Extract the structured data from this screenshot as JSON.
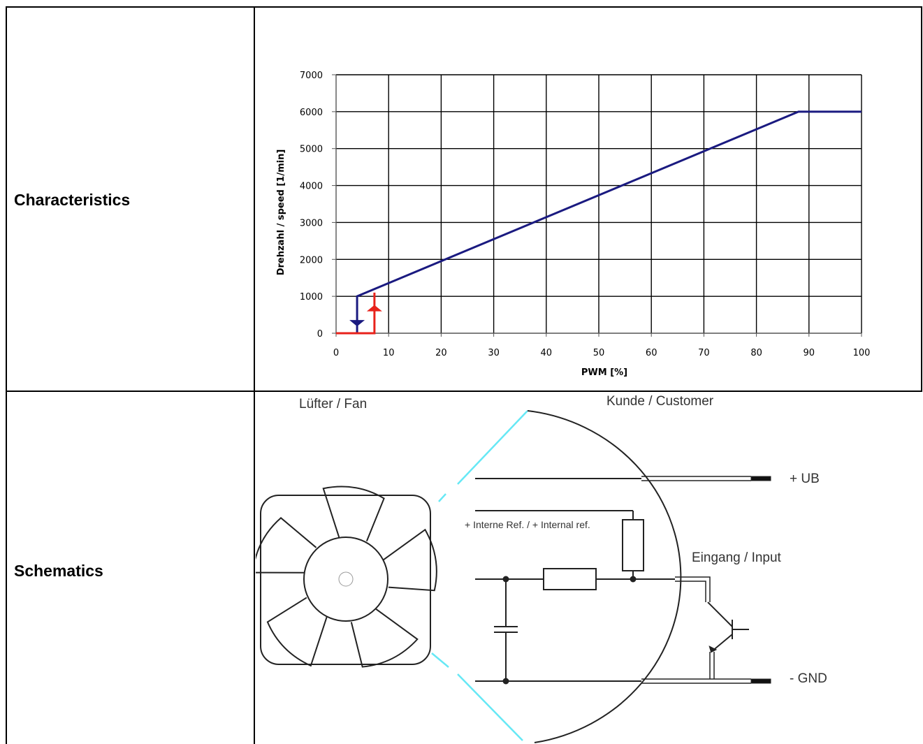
{
  "rows": [
    {
      "label": "Characteristics"
    },
    {
      "label": "Schematics"
    }
  ],
  "chart_data": {
    "type": "line",
    "xlabel": "PWM [%]",
    "ylabel": "Drehzahl / speed [1/min]",
    "xlim": [
      0,
      100
    ],
    "ylim": [
      0,
      7000
    ],
    "x_ticks": [
      0,
      10,
      20,
      30,
      40,
      50,
      60,
      70,
      80,
      90,
      100
    ],
    "y_ticks": [
      0,
      1000,
      2000,
      3000,
      4000,
      5000,
      6000,
      7000
    ],
    "x_tick_labels": [
      "0",
      "10",
      "20",
      "30",
      "40",
      "50",
      "60",
      "70",
      "80",
      "90",
      "100"
    ],
    "y_tick_labels": [
      "0",
      "1000",
      "2000",
      "3000",
      "4000",
      "5000",
      "6000",
      "7000"
    ],
    "grid": true,
    "series": [
      {
        "color": "#1a1a80",
        "x": [
          4,
          4,
          88,
          100
        ],
        "y": [
          0,
          1000,
          6000,
          6000
        ]
      },
      {
        "color": "#e8221b",
        "x": [
          0,
          7.3,
          7.3
        ],
        "y": [
          0,
          0,
          1100
        ]
      }
    ],
    "hysteresis_arrows": [
      {
        "color": "#1a1a80",
        "direction": "down",
        "x": 4,
        "y": 300
      },
      {
        "color": "#e8221b",
        "direction": "up",
        "x": 7.3,
        "y": 650
      }
    ]
  },
  "schematic": {
    "fan_label": "Lüfter / Fan",
    "customer_label": "Kunde / Customer",
    "ub_label": "+ UB",
    "internal_ref_label": "+ Interne Ref. / + Internal ref.",
    "input_label": "Eingang / Input",
    "gnd_label": "- GND",
    "zoom_line_color": "#66e8f5"
  }
}
